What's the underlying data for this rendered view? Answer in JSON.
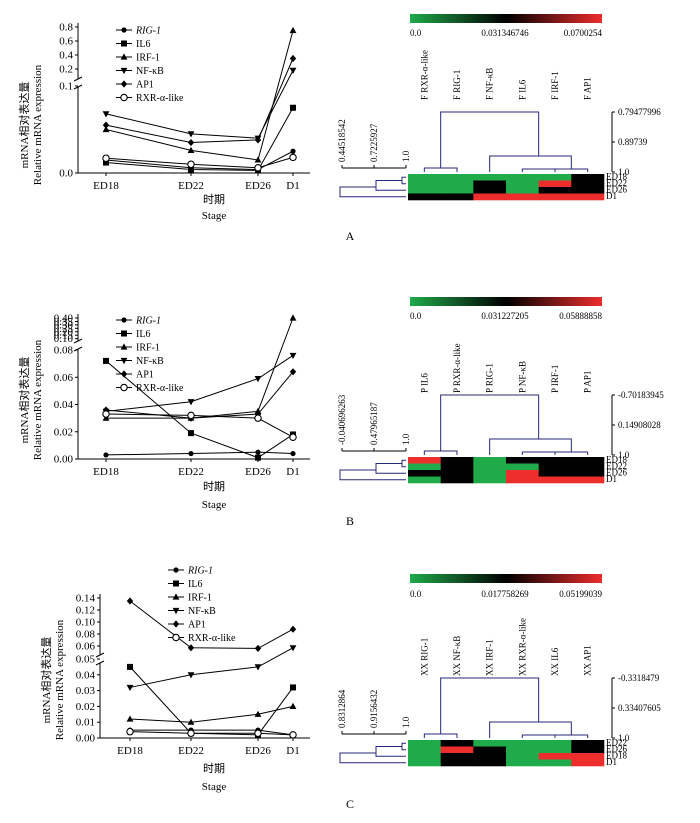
{
  "colorscale": {
    "low": "#1fab4a",
    "mid": "#000000",
    "high": "#ee2d2d"
  },
  "ylabel_cn": "mRNA相对表达量",
  "ylabel_en": "Relative  mRNA expression",
  "xlabel_cn": "时期",
  "xlabel_en": "Stage",
  "stages": [
    "ED18",
    "ED22",
    "ED26",
    "D1"
  ],
  "legend": [
    "RIG-1",
    "IL6",
    "IRF-1",
    "NF-κB",
    "AP1",
    "RXR-α-like"
  ],
  "panels": [
    {
      "label": "A",
      "chart_data": {
        "type": "line",
        "categories": [
          "ED18",
          "ED22",
          "ED26",
          "D1"
        ],
        "yticks_low": [
          "0.0",
          "0.1"
        ],
        "yticks_high": [
          "0.2",
          "0.4",
          "0.6",
          "0.8"
        ],
        "series": [
          {
            "name": "RIG-1",
            "values": [
              0.015,
              0.006,
              0.004,
              0.025
            ]
          },
          {
            "name": "IL6",
            "values": [
              0.012,
              0.004,
              0.003,
              0.075
            ]
          },
          {
            "name": "IRF-1",
            "values": [
              0.05,
              0.026,
              0.015,
              0.75
            ]
          },
          {
            "name": "NF-κB",
            "values": [
              0.068,
              0.045,
              0.04,
              0.18
            ]
          },
          {
            "name": "AP1",
            "values": [
              0.055,
              0.035,
              0.038,
              0.35
            ]
          },
          {
            "name": "RXR-α-like",
            "values": [
              0.017,
              0.01,
              0.006,
              0.018
            ]
          }
        ]
      },
      "heatmap": {
        "scale_labels": [
          "0.0",
          "0.031346746",
          "0.0700254"
        ],
        "columns": [
          "F RXR-α-like",
          "F RIG-1",
          "F NF-κB",
          "F IL6",
          "F IRF-1",
          "F AP1"
        ],
        "rows": [
          "ED18",
          "ED22",
          "ED26",
          "D1"
        ],
        "col_dendro_labels": [
          "0.79477996",
          "0.89739",
          "1.0"
        ],
        "row_dendro_labels": [
          "0.44518542",
          "0.7225927",
          "1.0"
        ],
        "cells": [
          [
            "low",
            "low",
            "low",
            "low",
            "low",
            "mid"
          ],
          [
            "low",
            "low",
            "mid",
            "low",
            "high",
            "mid"
          ],
          [
            "low",
            "low",
            "mid",
            "low",
            "mid",
            "mid"
          ],
          [
            "mid",
            "mid",
            "high",
            "high",
            "high",
            "high"
          ]
        ]
      }
    },
    {
      "label": "B",
      "chart_data": {
        "type": "line",
        "categories": [
          "ED18",
          "ED22",
          "ED26",
          "D1"
        ],
        "yticks_low": [
          "0.00",
          "0.02",
          "0.04",
          "0.06",
          "0.08"
        ],
        "yticks_high": [
          "0.10",
          "0.15",
          "0.20",
          "0.25",
          "0.30",
          "0.35",
          "0.40"
        ],
        "series": [
          {
            "name": "RIG-1",
            "values": [
              0.003,
              0.004,
              0.005,
              0.004
            ]
          },
          {
            "name": "IL6",
            "values": [
              0.072,
              0.019,
              0.001,
              0.018
            ]
          },
          {
            "name": "IRF-1",
            "values": [
              0.03,
              0.03,
              0.035,
              0.4
            ]
          },
          {
            "name": "NF-κB",
            "values": [
              0.035,
              0.042,
              0.059,
              0.076
            ]
          },
          {
            "name": "AP1",
            "values": [
              0.036,
              0.03,
              0.033,
              0.064
            ]
          },
          {
            "name": "RXR-α-like",
            "values": [
              0.033,
              0.032,
              0.03,
              0.016
            ]
          }
        ]
      },
      "heatmap": {
        "scale_labels": [
          "0.0",
          "0.031227205",
          "0.05888858"
        ],
        "columns": [
          "P IL6",
          "P RXR-α-like",
          "P RIG-1",
          "P NF-κB",
          "P IRF-1",
          "P AP1"
        ],
        "rows": [
          "ED18",
          "ED22",
          "ED26",
          "D1"
        ],
        "col_dendro_labels": [
          "-0.70183945",
          "0.14908028",
          "1.0"
        ],
        "row_dendro_labels": [
          "-0.040696263",
          "0.47965187",
          "1.0"
        ],
        "cells": [
          [
            "high",
            "mid",
            "low",
            "mid",
            "mid",
            "mid"
          ],
          [
            "low",
            "mid",
            "low",
            "low",
            "mid",
            "mid"
          ],
          [
            "mid",
            "mid",
            "low",
            "high",
            "mid",
            "mid"
          ],
          [
            "low",
            "mid",
            "low",
            "high",
            "high",
            "high"
          ]
        ]
      }
    },
    {
      "label": "C",
      "chart_data": {
        "type": "line",
        "categories": [
          "ED18",
          "ED22",
          "ED26",
          "D1"
        ],
        "yticks_low": [
          "0.00",
          "0.01",
          "0.02",
          "0.03",
          "0.04",
          "0.05"
        ],
        "yticks_high": [
          "0.06",
          "0.08",
          "0.10",
          "0.12",
          "0.14"
        ],
        "series": [
          {
            "name": "RIG-1",
            "values": [
              0.005,
              0.005,
              0.005,
              0.002
            ]
          },
          {
            "name": "IL6",
            "values": [
              0.045,
              0.003,
              0.002,
              0.032
            ]
          },
          {
            "name": "IRF-1",
            "values": [
              0.012,
              0.01,
              0.015,
              0.02
            ]
          },
          {
            "name": "NF-κB",
            "values": [
              0.032,
              0.04,
              0.045,
              0.057
            ]
          },
          {
            "name": "AP1",
            "values": [
              0.135,
              0.057,
              0.056,
              0.088
            ]
          },
          {
            "name": "RXR-α-like",
            "values": [
              0.004,
              0.003,
              0.003,
              0.002
            ]
          }
        ]
      },
      "heatmap": {
        "scale_labels": [
          "0.0",
          "0.017758269",
          "0.05199039"
        ],
        "columns": [
          "XX RIG-1",
          "XX NF-κB",
          "XX IRF-1",
          "XX RXR-α-like",
          "XX IL6",
          "XX AP1"
        ],
        "rows": [
          "ED22",
          "ED26",
          "ED18",
          "D1"
        ],
        "col_dendro_labels": [
          "-0.3318479",
          "0.33407605",
          "1.0"
        ],
        "row_dendro_labels": [
          "0.8312864",
          "0.9156432",
          "1.0"
        ],
        "cells": [
          [
            "low",
            "mid",
            "low",
            "low",
            "low",
            "mid"
          ],
          [
            "low",
            "high",
            "mid",
            "low",
            "low",
            "mid"
          ],
          [
            "low",
            "mid",
            "mid",
            "low",
            "high",
            "high"
          ],
          [
            "low",
            "mid",
            "mid",
            "low",
            "low",
            "high"
          ]
        ]
      }
    }
  ]
}
